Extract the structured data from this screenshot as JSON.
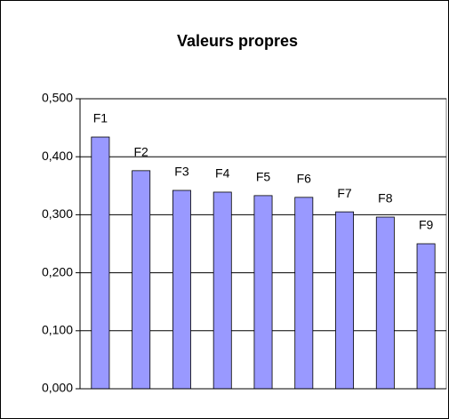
{
  "chart_data": {
    "type": "bar",
    "title": "Valeurs propres",
    "categories": [
      "F1",
      "F2",
      "F3",
      "F4",
      "F5",
      "F6",
      "F7",
      "F8",
      "F9"
    ],
    "values": [
      0.434,
      0.376,
      0.342,
      0.339,
      0.333,
      0.33,
      0.305,
      0.296,
      0.25
    ],
    "color": "#9999ff",
    "ylim": [
      0,
      0.5
    ],
    "yticks": [
      {
        "value": 0,
        "label": "0,000"
      },
      {
        "value": 0.1,
        "label": "0,100"
      },
      {
        "value": 0.2,
        "label": "0,200"
      },
      {
        "value": 0.3,
        "label": "0,300"
      },
      {
        "value": 0.4,
        "label": "0,400"
      },
      {
        "value": 0.5,
        "label": "0,500"
      }
    ],
    "grid": true
  }
}
